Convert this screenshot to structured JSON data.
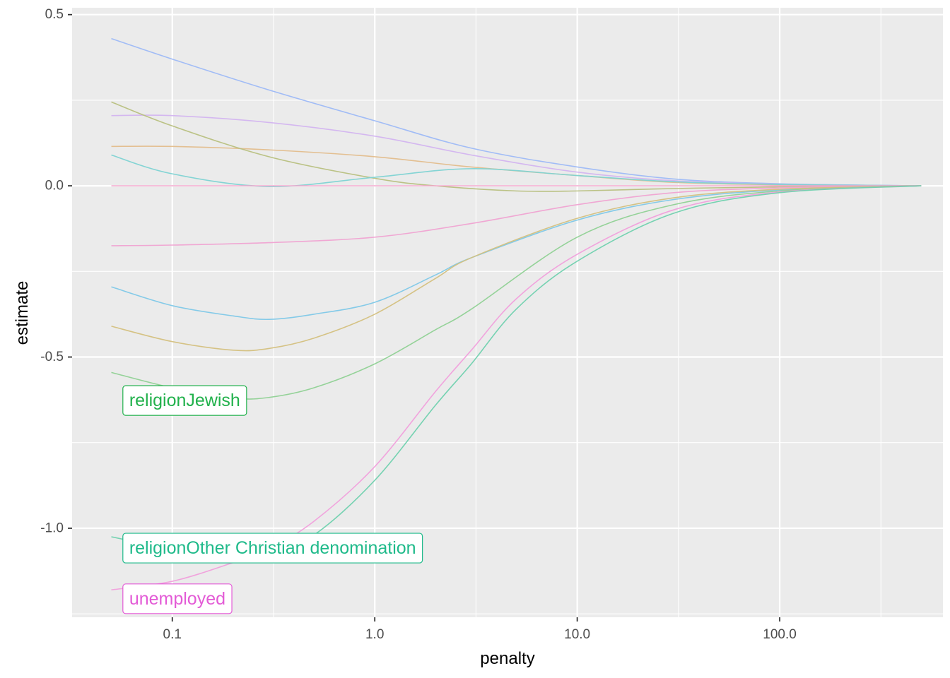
{
  "chart_data": {
    "type": "line",
    "xlabel": "penalty",
    "ylabel": "estimate",
    "x_scale": "log10",
    "xlim": [
      0.032,
      640
    ],
    "ylim": [
      -1.26,
      0.52
    ],
    "grid": true,
    "legend": "none",
    "x_ticks": [
      {
        "value": 0.1,
        "label": "0.1"
      },
      {
        "value": 1,
        "label": "1.0"
      },
      {
        "value": 10,
        "label": "10.0"
      },
      {
        "value": 100,
        "label": "100.0"
      }
    ],
    "y_ticks": [
      {
        "value": 0.5,
        "label": "0.5"
      },
      {
        "value": 0.0,
        "label": "0.0"
      },
      {
        "value": -0.5,
        "label": "-0.5"
      },
      {
        "value": -1.0,
        "label": "-1.0"
      }
    ],
    "series": [
      {
        "color": "#9db9f7",
        "x": [
          0.05,
          0.1,
          0.3,
          1,
          3,
          10,
          30,
          100,
          500
        ],
        "y": [
          0.43,
          0.37,
          0.28,
          0.19,
          0.11,
          0.055,
          0.02,
          0.006,
          0
        ]
      },
      {
        "color": "#d3b4f0",
        "x": [
          0.05,
          0.1,
          0.3,
          1,
          3,
          10,
          30,
          100,
          500
        ],
        "y": [
          0.205,
          0.205,
          0.185,
          0.145,
          0.09,
          0.04,
          0.015,
          0.005,
          0
        ]
      },
      {
        "color": "#e3bd8c",
        "x": [
          0.05,
          0.1,
          0.3,
          1,
          3,
          10,
          30,
          100,
          500
        ],
        "y": [
          0.115,
          0.115,
          0.105,
          0.085,
          0.055,
          0.03,
          0.01,
          0.003,
          0
        ]
      },
      {
        "color": "#b8c07f",
        "x": [
          0.05,
          0.1,
          0.3,
          1,
          2,
          5,
          10,
          30,
          100,
          500
        ],
        "y": [
          0.245,
          0.175,
          0.085,
          0.022,
          0.0,
          -0.015,
          -0.015,
          -0.008,
          -0.003,
          0
        ]
      },
      {
        "color": "#7dd3d3",
        "x": [
          0.05,
          0.1,
          0.3,
          1,
          3,
          10,
          30,
          100,
          500
        ],
        "y": [
          0.09,
          0.035,
          -0.002,
          0.025,
          0.05,
          0.03,
          0.012,
          0.004,
          0
        ]
      },
      {
        "color": "#f2a6cc",
        "x": [
          0.05,
          0.1,
          0.3,
          1,
          3,
          10,
          30,
          100,
          500
        ],
        "y": [
          0.0,
          0.0,
          0.0,
          0.0,
          0.0,
          0.0,
          0.0,
          0.0,
          0
        ]
      },
      {
        "color": "#f0a3d2",
        "x": [
          0.05,
          0.1,
          0.3,
          1,
          3,
          10,
          30,
          100,
          500
        ],
        "y": [
          -0.175,
          -0.173,
          -0.166,
          -0.15,
          -0.11,
          -0.055,
          -0.02,
          -0.006,
          0
        ]
      },
      {
        "color": "#7ec8e8",
        "x": [
          0.05,
          0.1,
          0.2,
          0.3,
          0.5,
          1,
          2,
          3,
          10,
          30,
          100,
          500
        ],
        "y": [
          -0.295,
          -0.35,
          -0.38,
          -0.39,
          -0.375,
          -0.34,
          -0.26,
          -0.21,
          -0.1,
          -0.04,
          -0.012,
          0
        ]
      },
      {
        "color": "#d4c07e",
        "x": [
          0.05,
          0.1,
          0.2,
          0.3,
          0.5,
          1,
          2,
          3,
          10,
          30,
          100,
          500
        ],
        "y": [
          -0.41,
          -0.455,
          -0.48,
          -0.475,
          -0.445,
          -0.375,
          -0.27,
          -0.21,
          -0.095,
          -0.035,
          -0.01,
          0
        ]
      },
      {
        "color": "#8fd193",
        "x": [
          0.05,
          0.1,
          0.2,
          0.3,
          0.5,
          1,
          2,
          3,
          10,
          30,
          100,
          500
        ],
        "y": [
          -0.545,
          -0.59,
          -0.62,
          -0.618,
          -0.59,
          -0.52,
          -0.42,
          -0.36,
          -0.15,
          -0.055,
          -0.015,
          0
        ]
      },
      {
        "color": "#f19fdc",
        "x": [
          0.05,
          0.1,
          0.2,
          0.3,
          0.5,
          1,
          2,
          3,
          5,
          10,
          30,
          100,
          500
        ],
        "y": [
          -1.18,
          -1.155,
          -1.1,
          -1.06,
          -0.98,
          -0.82,
          -0.6,
          -0.48,
          -0.33,
          -0.2,
          -0.07,
          -0.018,
          0
        ]
      },
      {
        "color": "#6fd1ae",
        "x": [
          0.05,
          0.1,
          0.2,
          0.3,
          0.5,
          1,
          2,
          3,
          5,
          10,
          30,
          100,
          500
        ],
        "y": [
          -1.025,
          -1.06,
          -1.075,
          -1.07,
          -1.02,
          -0.86,
          -0.64,
          -0.52,
          -0.36,
          -0.22,
          -0.08,
          -0.02,
          0
        ]
      }
    ],
    "annotations": [
      {
        "text": "religionJewish",
        "x": 0.057,
        "y": -0.627,
        "color": "#22b14c"
      },
      {
        "text": "religionOther Christian denomination",
        "x": 0.057,
        "y": -1.058,
        "color": "#1fba8a"
      },
      {
        "text": "unemployed",
        "x": 0.057,
        "y": -1.206,
        "color": "#e35bd6"
      }
    ]
  }
}
